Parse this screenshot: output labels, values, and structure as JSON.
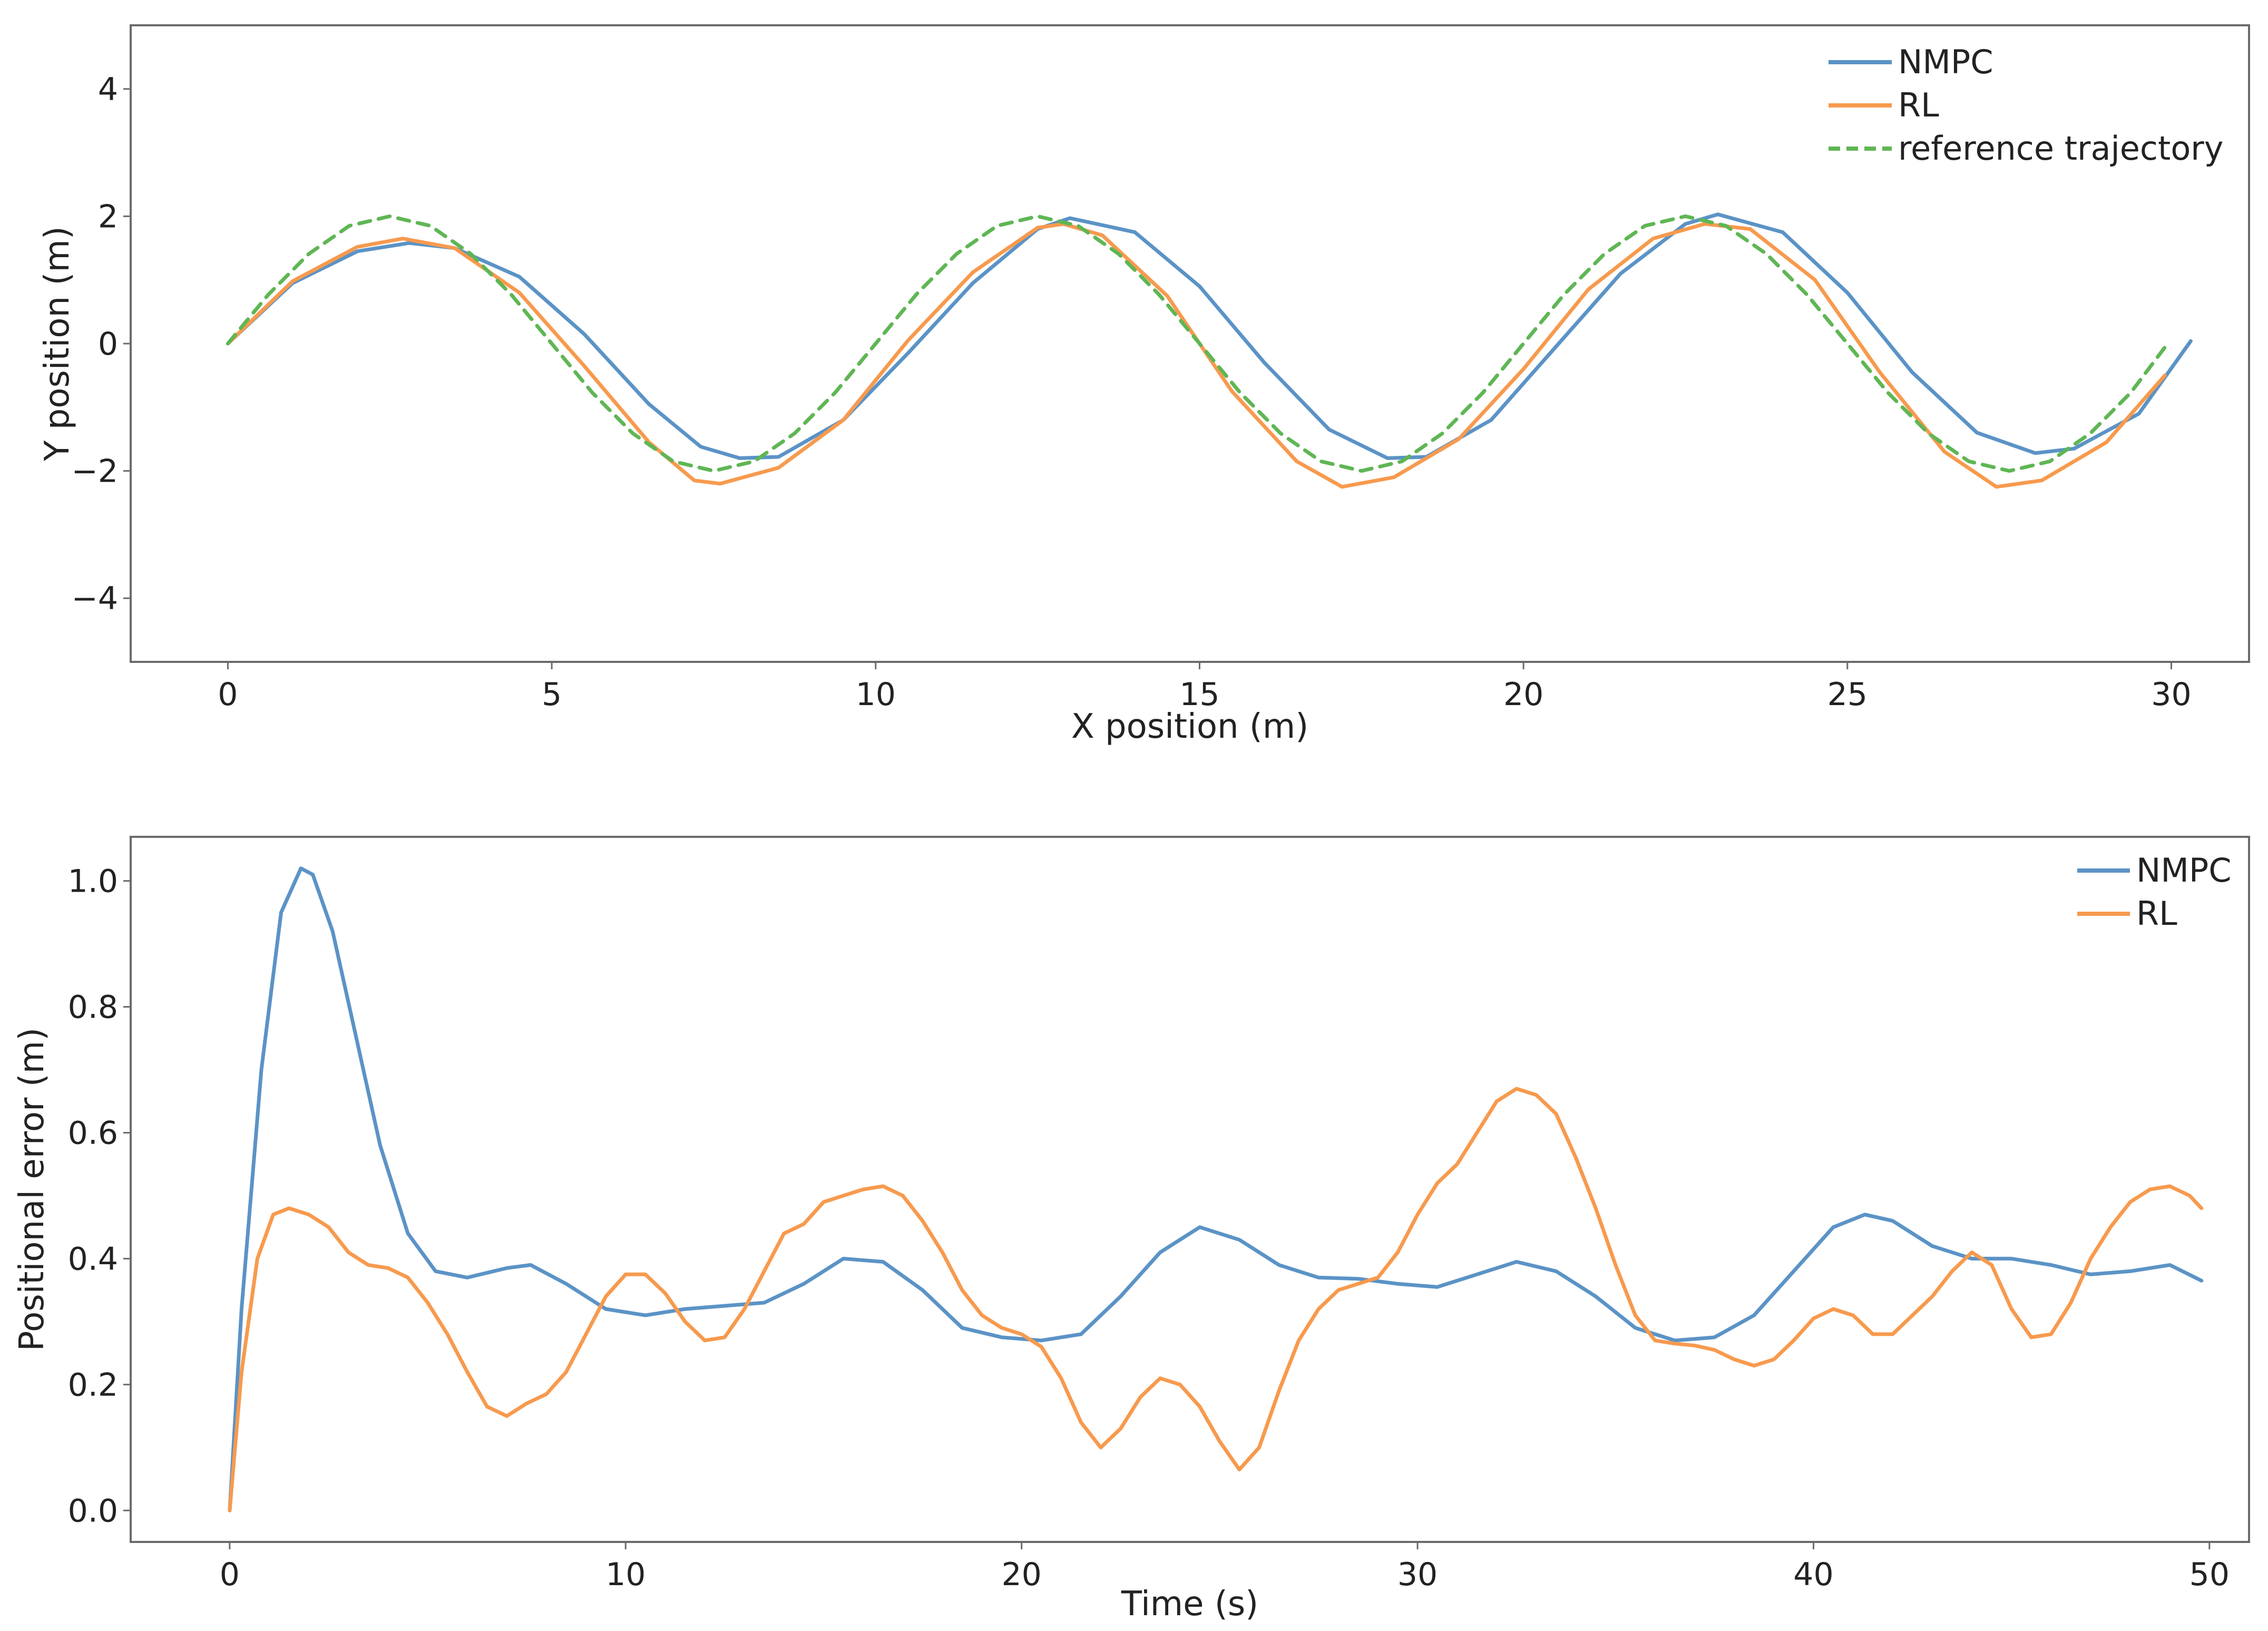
{
  "colors": {
    "nmpc": "#5b93c6",
    "rl": "#f79a4e",
    "reference": "#5fb654",
    "frame": "#6b6b6b"
  },
  "chart_data": [
    {
      "type": "line",
      "xlabel": "X position (m)",
      "ylabel": "Y position (m)",
      "xlim": [
        -1.5,
        31.2
      ],
      "ylim": [
        -5,
        5
      ],
      "xticks": [
        0,
        5,
        10,
        15,
        20,
        25,
        30
      ],
      "yticks": [
        -4,
        -2,
        0,
        2,
        4
      ],
      "ytick_labels": [
        "−4",
        "−2",
        "0",
        "2",
        "4"
      ],
      "grid": false,
      "legend_position": "top-right",
      "series": [
        {
          "name": "NMPC",
          "style": "solid",
          "color_key": "nmpc",
          "x": [
            0,
            1,
            2,
            2.8,
            3.5,
            4.5,
            5.5,
            6.5,
            7.3,
            7.9,
            8.5,
            9.5,
            10.5,
            11.5,
            12.5,
            13,
            14,
            15,
            16,
            17,
            17.9,
            18.5,
            19.5,
            20.5,
            21.5,
            22.5,
            23,
            24,
            25,
            26,
            27,
            27.9,
            28.5,
            29.5,
            30.3
          ],
          "y": [
            0,
            0.95,
            1.45,
            1.58,
            1.5,
            1.05,
            0.15,
            -0.95,
            -1.62,
            -1.8,
            -1.78,
            -1.2,
            -0.15,
            0.95,
            1.8,
            1.97,
            1.75,
            0.9,
            -0.3,
            -1.35,
            -1.8,
            -1.78,
            -1.2,
            -0.05,
            1.1,
            1.88,
            2.03,
            1.75,
            0.8,
            -0.45,
            -1.4,
            -1.72,
            -1.65,
            -1.1,
            0.04
          ]
        },
        {
          "name": "RL",
          "style": "solid",
          "color_key": "rl",
          "x": [
            0,
            1,
            2,
            2.7,
            3.5,
            4.5,
            5.5,
            6.5,
            7.2,
            7.6,
            8.5,
            9.5,
            10.5,
            11.5,
            12.5,
            12.9,
            13.5,
            14.5,
            15.5,
            16.5,
            17.2,
            18,
            19,
            20,
            21,
            22,
            22.8,
            23.5,
            24.5,
            25.5,
            26.5,
            27.3,
            28,
            29,
            29.9
          ],
          "y": [
            0,
            0.98,
            1.52,
            1.65,
            1.5,
            0.8,
            -0.35,
            -1.55,
            -2.15,
            -2.2,
            -1.95,
            -1.2,
            0.05,
            1.12,
            1.82,
            1.88,
            1.7,
            0.75,
            -0.75,
            -1.85,
            -2.25,
            -2.1,
            -1.5,
            -0.4,
            0.85,
            1.65,
            1.88,
            1.8,
            1.0,
            -0.45,
            -1.7,
            -2.25,
            -2.15,
            -1.55,
            -0.5
          ]
        },
        {
          "name": "reference trajectory",
          "style": "dashed",
          "color_key": "reference",
          "x": [
            0,
            0.625,
            1.25,
            1.875,
            2.5,
            3.125,
            3.75,
            4.375,
            5,
            5.625,
            6.25,
            6.875,
            7.5,
            8.125,
            8.75,
            9.375,
            10,
            10.625,
            11.25,
            11.875,
            12.5,
            13.125,
            13.75,
            14.375,
            15,
            15.625,
            16.25,
            16.875,
            17.5,
            18.125,
            18.75,
            19.375,
            20,
            20.625,
            21.25,
            21.875,
            22.5,
            23.125,
            23.75,
            24.375,
            25,
            25.625,
            26.25,
            26.875,
            27.5,
            28.125,
            28.75,
            29.375,
            29.9
          ],
          "y": [
            0,
            0.77,
            1.41,
            1.85,
            2,
            1.85,
            1.41,
            0.77,
            0,
            -0.77,
            -1.41,
            -1.85,
            -2,
            -1.85,
            -1.41,
            -0.77,
            0,
            0.77,
            1.41,
            1.85,
            2,
            1.85,
            1.41,
            0.77,
            0,
            -0.77,
            -1.41,
            -1.85,
            -2,
            -1.85,
            -1.41,
            -0.77,
            0,
            0.77,
            1.41,
            1.85,
            2,
            1.85,
            1.41,
            0.77,
            0,
            -0.77,
            -1.41,
            -1.85,
            -2,
            -1.85,
            -1.41,
            -0.77,
            -0.06
          ]
        }
      ]
    },
    {
      "type": "line",
      "xlabel": "Time (s)",
      "ylabel": "Positional error (m)",
      "xlim": [
        -2.5,
        51
      ],
      "ylim": [
        -0.05,
        1.07
      ],
      "xticks": [
        0,
        10,
        20,
        30,
        40,
        50
      ],
      "yticks": [
        0,
        0.2,
        0.4,
        0.6,
        0.8,
        1.0
      ],
      "ytick_labels": [
        "0.0",
        "0.2",
        "0.4",
        "0.6",
        "0.8",
        "1.0"
      ],
      "grid": false,
      "legend_position": "top-right",
      "series": [
        {
          "name": "NMPC",
          "style": "solid",
          "color_key": "nmpc",
          "x": [
            0,
            0.3,
            0.8,
            1.3,
            1.8,
            2.1,
            2.6,
            3.2,
            3.8,
            4.5,
            5.2,
            6,
            7,
            7.6,
            8.5,
            9.5,
            10.5,
            11.5,
            12.5,
            13.5,
            14.5,
            15.5,
            16.5,
            17.5,
            18.5,
            19.5,
            20.5,
            21.5,
            22.5,
            23.5,
            24.5,
            25.5,
            26.5,
            27.5,
            28.5,
            29.5,
            30.5,
            31.5,
            32.5,
            33.5,
            34.5,
            35.5,
            36.5,
            37.5,
            38.5,
            39.5,
            40.5,
            41.3,
            42,
            43,
            44,
            45,
            46,
            47,
            48,
            49,
            49.8
          ],
          "y": [
            0,
            0.32,
            0.7,
            0.95,
            1.02,
            1.01,
            0.92,
            0.75,
            0.58,
            0.44,
            0.38,
            0.37,
            0.385,
            0.39,
            0.36,
            0.32,
            0.31,
            0.32,
            0.325,
            0.33,
            0.36,
            0.4,
            0.395,
            0.35,
            0.29,
            0.275,
            0.27,
            0.28,
            0.34,
            0.41,
            0.45,
            0.43,
            0.39,
            0.37,
            0.368,
            0.36,
            0.355,
            0.375,
            0.395,
            0.38,
            0.34,
            0.29,
            0.27,
            0.275,
            0.31,
            0.38,
            0.45,
            0.47,
            0.46,
            0.42,
            0.4,
            0.4,
            0.39,
            0.375,
            0.38,
            0.39,
            0.365
          ]
        },
        {
          "name": "RL",
          "style": "solid",
          "color_key": "rl",
          "x": [
            0,
            0.3,
            0.7,
            1.1,
            1.5,
            2,
            2.5,
            3,
            3.5,
            4,
            4.5,
            5,
            5.5,
            6,
            6.5,
            7,
            7.5,
            8,
            8.5,
            9,
            9.5,
            10,
            10.5,
            11,
            11.5,
            12,
            12.5,
            13,
            13.5,
            14,
            14.5,
            15,
            15.5,
            16,
            16.5,
            17,
            17.5,
            18,
            18.5,
            19,
            19.5,
            20,
            20.5,
            21,
            21.5,
            22,
            22.5,
            23,
            23.5,
            24,
            24.5,
            25,
            25.5,
            26,
            26.5,
            27,
            27.5,
            28,
            28.5,
            29,
            29.5,
            30,
            30.5,
            31,
            31.5,
            32,
            32.5,
            33,
            33.5,
            34,
            34.5,
            35,
            35.5,
            36,
            36.5,
            37,
            37.5,
            38,
            38.5,
            39,
            39.5,
            40,
            40.5,
            41,
            41.5,
            42,
            42.5,
            43,
            43.5,
            44,
            44.5,
            45,
            45.5,
            46,
            46.5,
            47,
            47.5,
            48,
            48.5,
            49,
            49.5,
            49.8
          ],
          "y": [
            0,
            0.22,
            0.4,
            0.47,
            0.48,
            0.47,
            0.45,
            0.41,
            0.39,
            0.385,
            0.37,
            0.33,
            0.28,
            0.22,
            0.165,
            0.15,
            0.17,
            0.185,
            0.22,
            0.28,
            0.34,
            0.375,
            0.375,
            0.345,
            0.3,
            0.27,
            0.275,
            0.32,
            0.38,
            0.44,
            0.455,
            0.49,
            0.5,
            0.51,
            0.515,
            0.5,
            0.46,
            0.41,
            0.35,
            0.31,
            0.29,
            0.28,
            0.26,
            0.21,
            0.14,
            0.1,
            0.13,
            0.18,
            0.21,
            0.2,
            0.165,
            0.11,
            0.065,
            0.1,
            0.19,
            0.27,
            0.32,
            0.35,
            0.36,
            0.37,
            0.41,
            0.47,
            0.52,
            0.55,
            0.6,
            0.65,
            0.67,
            0.66,
            0.63,
            0.56,
            0.48,
            0.39,
            0.31,
            0.27,
            0.265,
            0.262,
            0.255,
            0.24,
            0.23,
            0.24,
            0.27,
            0.305,
            0.32,
            0.31,
            0.28,
            0.28,
            0.31,
            0.34,
            0.38,
            0.41,
            0.39,
            0.32,
            0.275,
            0.28,
            0.33,
            0.4,
            0.45,
            0.49,
            0.51,
            0.515,
            0.5,
            0.48
          ]
        }
      ]
    }
  ]
}
